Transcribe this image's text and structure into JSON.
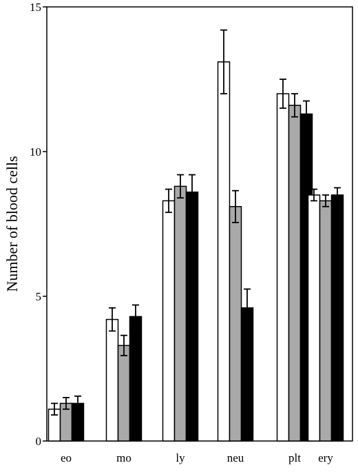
{
  "chart_data": {
    "type": "bar",
    "title": "",
    "xlabel": "",
    "ylabel": "Number of blood cells",
    "ylim": [
      0,
      15
    ],
    "yticks": [
      0,
      5,
      10,
      15
    ],
    "grid": false,
    "legend": "none",
    "categories": [
      "eo",
      "mo",
      "ly",
      "neu",
      "plt",
      "ery"
    ],
    "series": [
      {
        "color": "#ffffff",
        "values": [
          1.1,
          4.2,
          8.3,
          13.1,
          12.0,
          8.5
        ],
        "errors": [
          0.2,
          0.4,
          0.4,
          1.1,
          0.5,
          0.2
        ]
      },
      {
        "color": "#a9a9a9",
        "values": [
          1.3,
          3.3,
          8.8,
          8.1,
          11.6,
          8.3
        ],
        "errors": [
          0.2,
          0.35,
          0.4,
          0.55,
          0.4,
          0.2
        ]
      },
      {
        "color": "#000000",
        "values": [
          1.3,
          4.3,
          8.6,
          4.6,
          11.3,
          8.5
        ],
        "errors": [
          0.25,
          0.4,
          0.6,
          0.65,
          0.45,
          0.25
        ]
      }
    ]
  }
}
